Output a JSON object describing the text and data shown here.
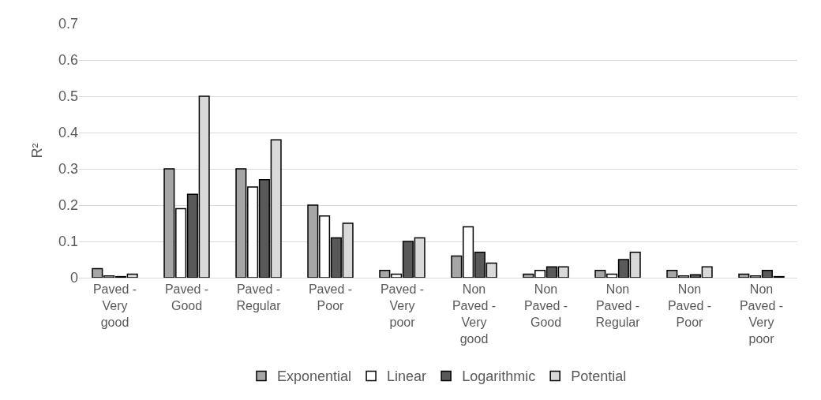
{
  "chart_data": {
    "type": "bar",
    "ylabel": "R²",
    "categories": [
      "Paved - Very good",
      "Paved - Good",
      "Paved - Regular",
      "Paved - Poor",
      "Paved - Very poor",
      "Non Paved - Very good",
      "Non Paved - Good",
      "Non Paved - Regular",
      "Non Paved - Poor",
      "Non Paved - Very poor"
    ],
    "series": [
      {
        "name": "Exponential",
        "color": "#a6a6a6",
        "values": [
          0.025,
          0.3,
          0.3,
          0.2,
          0.02,
          0.06,
          0.01,
          0.02,
          0.02,
          0.01
        ]
      },
      {
        "name": "Linear",
        "color": "#ffffff",
        "values": [
          0.005,
          0.19,
          0.25,
          0.17,
          0.01,
          0.14,
          0.02,
          0.01,
          0.005,
          0.005
        ]
      },
      {
        "name": "Logarithmic",
        "color": "#595959",
        "values": [
          0.003,
          0.23,
          0.27,
          0.11,
          0.1,
          0.07,
          0.03,
          0.05,
          0.008,
          0.02
        ]
      },
      {
        "name": "Potential",
        "color": "#d9d9d9",
        "values": [
          0.01,
          0.5,
          0.38,
          0.15,
          0.11,
          0.04,
          0.03,
          0.07,
          0.03,
          0.003
        ]
      }
    ],
    "ylim": [
      0,
      0.7
    ],
    "yticks": [
      0,
      0.1,
      0.2,
      0.3,
      0.4,
      0.5,
      0.6,
      0.7
    ],
    "grid": "y",
    "legend": "bottom"
  }
}
